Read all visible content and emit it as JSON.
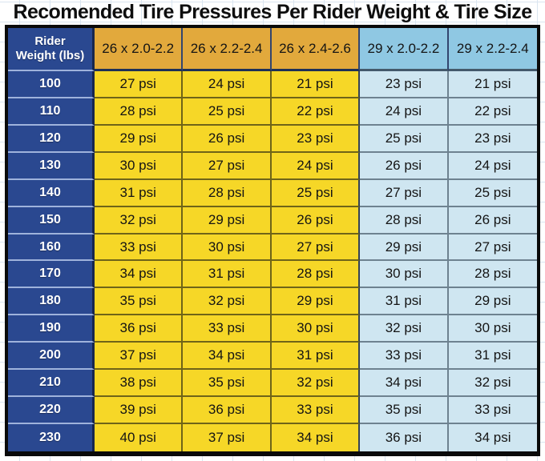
{
  "title": "Recomended Tire Pressures Per Rider Weight & Tire Size",
  "table": {
    "weight_header": "Rider Weight (lbs)",
    "weight_header_lines": [
      "Rider",
      "Weight (lbs)"
    ],
    "columns": [
      "26 x 2.0-2.2",
      "26 x 2.2-2.4",
      "26 x 2.4-2.6",
      "29 x 2.0-2.2",
      "29 x 2.2-2.4"
    ],
    "rows": [
      {
        "weight": "100",
        "values": [
          "27 psi",
          "24 psi",
          "21 psi",
          "23 psi",
          "21 psi"
        ]
      },
      {
        "weight": "110",
        "values": [
          "28 psi",
          "25 psi",
          "22 psi",
          "24 psi",
          "22 psi"
        ]
      },
      {
        "weight": "120",
        "values": [
          "29 psi",
          "26 psi",
          "23 psi",
          "25 psi",
          "23 psi"
        ]
      },
      {
        "weight": "130",
        "values": [
          "30 psi",
          "27 psi",
          "24 psi",
          "26 psi",
          "24 psi"
        ]
      },
      {
        "weight": "140",
        "values": [
          "31 psi",
          "28 psi",
          "25 psi",
          "27 psi",
          "25 psi"
        ]
      },
      {
        "weight": "150",
        "values": [
          "32 psi",
          "29 psi",
          "26 psi",
          "28 psi",
          "26 psi"
        ]
      },
      {
        "weight": "160",
        "values": [
          "33 psi",
          "30 psi",
          "27 psi",
          "29 psi",
          "27 psi"
        ]
      },
      {
        "weight": "170",
        "values": [
          "34 psi",
          "31 psi",
          "28 psi",
          "30 psi",
          "28 psi"
        ]
      },
      {
        "weight": "180",
        "values": [
          "35 psi",
          "32 psi",
          "29 psi",
          "31 psi",
          "29 psi"
        ]
      },
      {
        "weight": "190",
        "values": [
          "36 psi",
          "33 psi",
          "30 psi",
          "32 psi",
          "30 psi"
        ]
      },
      {
        "weight": "200",
        "values": [
          "37 psi",
          "34 psi",
          "31 psi",
          "33 psi",
          "31 psi"
        ]
      },
      {
        "weight": "210",
        "values": [
          "38 psi",
          "35 psi",
          "32 psi",
          "34 psi",
          "32 psi"
        ]
      },
      {
        "weight": "220",
        "values": [
          "39 psi",
          "36 psi",
          "33 psi",
          "35 psi",
          "33 psi"
        ]
      },
      {
        "weight": "230",
        "values": [
          "40 psi",
          "37 psi",
          "34 psi",
          "36 psi",
          "34 psi"
        ]
      }
    ]
  },
  "colors": {
    "navy": "#2A4890",
    "gold_header": "#E2A93C",
    "yellow_data": "#F6D727",
    "blue_header": "#8FC8E3",
    "blue_data": "#CFE6F1",
    "outer_border": "#0A0A0A",
    "weight_divider": "#9FB3DC",
    "yellow_divider": "#6F6418",
    "blue_divider": "#6E8290"
  },
  "chart_data": {
    "type": "table",
    "title": "Recomended Tire Pressures Per Rider Weight & Tire Size",
    "row_header": "Rider Weight (lbs)",
    "unit": "psi",
    "weights": [
      100,
      110,
      120,
      130,
      140,
      150,
      160,
      170,
      180,
      190,
      200,
      210,
      220,
      230
    ],
    "series": [
      {
        "name": "26 x 2.0-2.2",
        "values": [
          27,
          28,
          29,
          30,
          31,
          32,
          33,
          34,
          35,
          36,
          37,
          38,
          39,
          40
        ]
      },
      {
        "name": "26 x 2.2-2.4",
        "values": [
          24,
          25,
          26,
          27,
          28,
          29,
          30,
          31,
          32,
          33,
          34,
          35,
          36,
          37
        ]
      },
      {
        "name": "26 x 2.4-2.6",
        "values": [
          21,
          22,
          23,
          24,
          25,
          26,
          27,
          28,
          29,
          30,
          31,
          32,
          33,
          34
        ]
      },
      {
        "name": "29 x 2.0-2.2",
        "values": [
          23,
          24,
          25,
          26,
          27,
          28,
          29,
          30,
          31,
          32,
          33,
          34,
          35,
          36
        ]
      },
      {
        "name": "29 x 2.2-2.4",
        "values": [
          21,
          22,
          23,
          24,
          25,
          26,
          27,
          28,
          29,
          30,
          31,
          32,
          33,
          34
        ]
      }
    ]
  }
}
